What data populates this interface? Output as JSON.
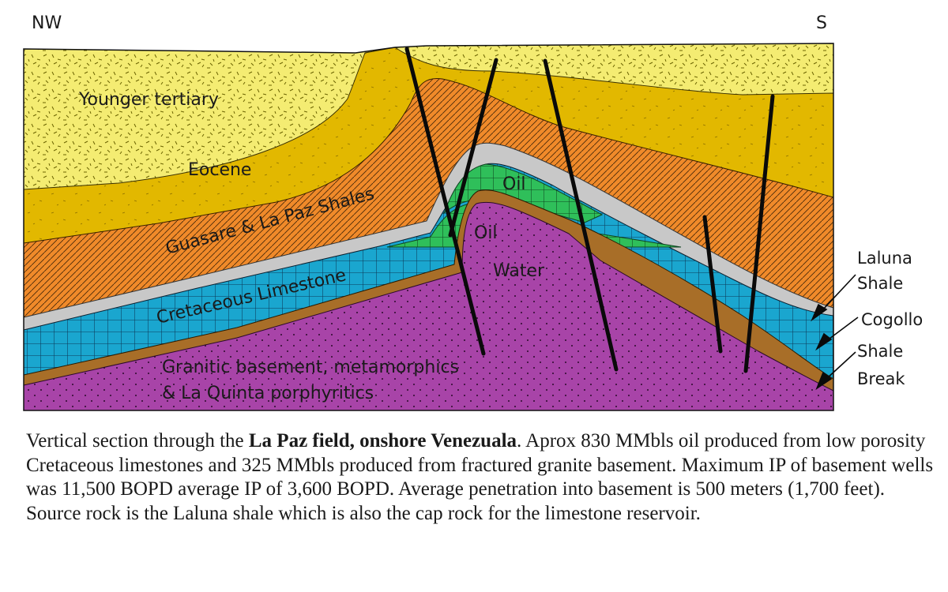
{
  "directions": {
    "left": "NW",
    "right": "S"
  },
  "layers": {
    "younger_tertiary": "Younger tertiary",
    "eocene": "Eocene",
    "guasare": "Guasare & La Paz Shales",
    "cretaceous": "Cretaceous Limestone",
    "oil_upper": "Oil",
    "oil_lower": "Oil",
    "water": "Water",
    "basement_line1": "Granitic basement, metamorphics",
    "basement_line2": "& La Quinta porphyritics"
  },
  "callouts": {
    "laluna_1": "Laluna",
    "laluna_2": "Shale",
    "cogollo": "Cogollo",
    "shale_break_1": "Shale",
    "shale_break_2": "Break"
  },
  "colors": {
    "tertiary": "#f4ec72",
    "eocene": "#e2b800",
    "shale": "#f08a2a",
    "limestone": "#1aa6cf",
    "oil": "#2fbf5a",
    "basement": "#a844a8",
    "cap": "#c8c8c8",
    "break": "#a86e28"
  },
  "caption": {
    "p1": "Vertical section through the ",
    "bold": "La Paz field, onshore Venezuala",
    "p2": ". Aprox 830 MMbls oil produced from low porosity Cretaceous limestones and 325 MMbls produced from fractured granite basement. Maximum IP of basement wells was 11,500 BOPD average IP of 3,600 BOPD.  Average penetration into basement is 500 meters (1,700 feet). Source rock is the Laluna shale which is also the cap rock for the limestone reservoir."
  }
}
